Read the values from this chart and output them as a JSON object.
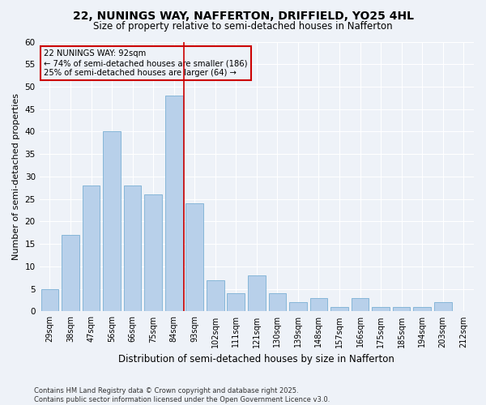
{
  "title": "22, NUNINGS WAY, NAFFERTON, DRIFFIELD, YO25 4HL",
  "subtitle": "Size of property relative to semi-detached houses in Nafferton",
  "xlabel": "Distribution of semi-detached houses by size in Nafferton",
  "ylabel": "Number of semi-detached properties",
  "categories": [
    "29sqm",
    "38sqm",
    "47sqm",
    "56sqm",
    "66sqm",
    "75sqm",
    "84sqm",
    "93sqm",
    "102sqm",
    "111sqm",
    "121sqm",
    "130sqm",
    "139sqm",
    "148sqm",
    "157sqm",
    "166sqm",
    "175sqm",
    "185sqm",
    "194sqm",
    "203sqm",
    "212sqm"
  ],
  "values": [
    5,
    17,
    28,
    40,
    28,
    26,
    48,
    24,
    7,
    4,
    8,
    4,
    2,
    3,
    1,
    3,
    1,
    1,
    1,
    2,
    0
  ],
  "bar_color": "#b8d0ea",
  "bar_edge_color": "#7aafd4",
  "vline_color": "#cc0000",
  "annotation_title": "22 NUNINGS WAY: 92sqm",
  "annotation_line1": "← 74% of semi-detached houses are smaller (186)",
  "annotation_line2": "25% of semi-detached houses are larger (64) →",
  "annotation_box_color": "#cc0000",
  "ylim": [
    0,
    60
  ],
  "yticks": [
    0,
    5,
    10,
    15,
    20,
    25,
    30,
    35,
    40,
    45,
    50,
    55,
    60
  ],
  "footer_line1": "Contains HM Land Registry data © Crown copyright and database right 2025.",
  "footer_line2": "Contains public sector information licensed under the Open Government Licence v3.0.",
  "bg_color": "#eef2f8",
  "title_fontsize": 10,
  "subtitle_fontsize": 8.5
}
